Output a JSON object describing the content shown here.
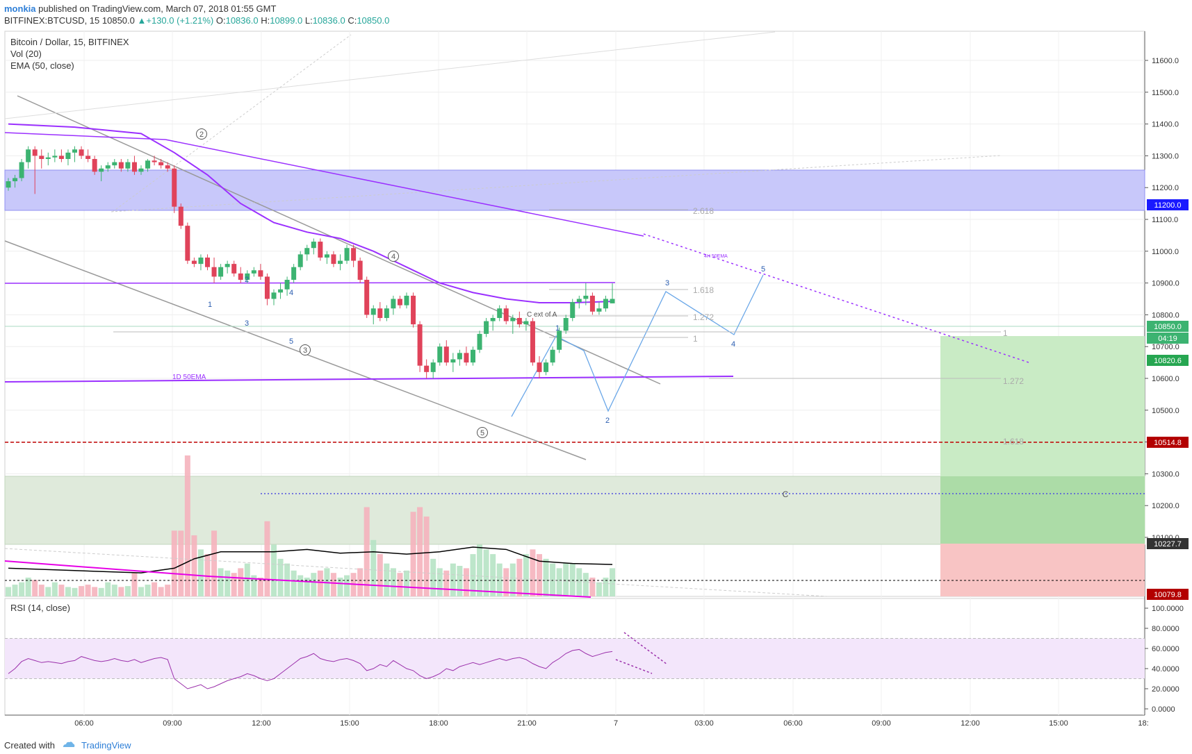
{
  "header": {
    "author": "monkia",
    "published": "published on TradingView.com, March 07, 2018 01:55 GMT",
    "symbol": "BITFINEX:BTCUSD, 15",
    "last": "10850.0",
    "change": "+130.0 (+1.21%)",
    "o": "10836.0",
    "h": "10899.0",
    "l": "10836.0",
    "c": "10850.0"
  },
  "legend": {
    "title": "Bitcoin / Dollar, 15, BITFINEX",
    "vol": "Vol (20)",
    "ema": "EMA (50, close)",
    "rsi": "RSI (14, close)"
  },
  "footer": {
    "created": "Created with",
    "brand": "TradingView"
  },
  "colors": {
    "up": "#26a69a",
    "upBody": "#3cb371",
    "down": "#e0435a",
    "ema": "#9b30ff",
    "zone": "#9f9ff7",
    "target": "#a8dca0",
    "stop": "#f8b4b4",
    "redLine": "#c00000"
  },
  "chart_data": {
    "type": "candlestick",
    "price_axis": {
      "min": 10079.8,
      "max": 11650,
      "ticks": [
        10100,
        10200,
        10300,
        10400,
        10500,
        10600,
        10700,
        10800,
        10900,
        11000,
        11100,
        11200,
        11300,
        11400,
        11500,
        11600
      ],
      "tick_labels": [
        "10100.0",
        "10200.0",
        "10300.0",
        "10400.0",
        "10500.0",
        "10600.0",
        "10700.0",
        "10800.0",
        "10900.0",
        "11000.0",
        "11100.0",
        "11200.0",
        "11300.0",
        "11400.0",
        "11500.0",
        "11600.0"
      ]
    },
    "time_axis": {
      "labels": [
        "06:00",
        "09:00",
        "12:00",
        "15:00",
        "18:00",
        "21:00",
        "7",
        "03:00",
        "06:00",
        "09:00",
        "12:00",
        "15:00",
        "18:"
      ]
    },
    "price_tags": [
      {
        "value": 11200.0,
        "label": "11200.0",
        "color": "#1a1aff"
      },
      {
        "value": 10850.0,
        "label": "10850.0",
        "color": "#3cb371"
      },
      {
        "value": 10850.0,
        "label": "04:19",
        "color": "#3cb371"
      },
      {
        "value": 10820.6,
        "label": "10820.6",
        "color": "#26a651"
      },
      {
        "value": 10514.8,
        "label": "10514.8",
        "color": "#b30000"
      },
      {
        "value": 10227.7,
        "label": "10227.7",
        "color": "#333333"
      },
      {
        "value": 10079.8,
        "label": "10079.8",
        "color": "#b30000"
      }
    ],
    "candles": [
      [
        11200,
        11230,
        11190,
        11220
      ],
      [
        11220,
        11240,
        11200,
        11230
      ],
      [
        11230,
        11290,
        11220,
        11280
      ],
      [
        11280,
        11330,
        11260,
        11320
      ],
      [
        11320,
        11330,
        11180,
        11300
      ],
      [
        11300,
        11320,
        11260,
        11290
      ],
      [
        11290,
        11310,
        11270,
        11295
      ],
      [
        11295,
        11320,
        11280,
        11300
      ],
      [
        11300,
        11320,
        11280,
        11290
      ],
      [
        11290,
        11320,
        11270,
        11310
      ],
      [
        11310,
        11330,
        11280,
        11320
      ],
      [
        11320,
        11330,
        11290,
        11300
      ],
      [
        11300,
        11320,
        11280,
        11290
      ],
      [
        11290,
        11300,
        11240,
        11250
      ],
      [
        11250,
        11270,
        11220,
        11260
      ],
      [
        11260,
        11280,
        11250,
        11270
      ],
      [
        11270,
        11290,
        11260,
        11280
      ],
      [
        11280,
        11290,
        11250,
        11260
      ],
      [
        11260,
        11290,
        11250,
        11280
      ],
      [
        11280,
        11300,
        11240,
        11250
      ],
      [
        11250,
        11270,
        11240,
        11260
      ],
      [
        11260,
        11290,
        11250,
        11285
      ],
      [
        11285,
        11300,
        11270,
        11280
      ],
      [
        11280,
        11290,
        11260,
        11270
      ],
      [
        11270,
        11280,
        11250,
        11260
      ],
      [
        11260,
        11270,
        11120,
        11140
      ],
      [
        11140,
        11150,
        11070,
        11080
      ],
      [
        11080,
        11090,
        10960,
        10970
      ],
      [
        10970,
        10980,
        10950,
        10960
      ],
      [
        10960,
        10990,
        10940,
        10980
      ],
      [
        10980,
        10990,
        10940,
        10950
      ],
      [
        10950,
        10980,
        10900,
        10920
      ],
      [
        10920,
        10960,
        10910,
        10950
      ],
      [
        10950,
        10970,
        10930,
        10960
      ],
      [
        10960,
        10970,
        10920,
        10930
      ],
      [
        10930,
        10950,
        10900,
        10910
      ],
      [
        10910,
        10940,
        10900,
        10930
      ],
      [
        10930,
        10950,
        10920,
        10940
      ],
      [
        10940,
        10960,
        10910,
        10920
      ],
      [
        10920,
        10930,
        10830,
        10850
      ],
      [
        10850,
        10880,
        10830,
        10870
      ],
      [
        10870,
        10900,
        10850,
        10880
      ],
      [
        10880,
        10920,
        10860,
        10910
      ],
      [
        10910,
        10960,
        10900,
        10950
      ],
      [
        10950,
        11000,
        10940,
        10990
      ],
      [
        10990,
        11020,
        10970,
        11010
      ],
      [
        11010,
        11040,
        10990,
        11030
      ],
      [
        11030,
        11040,
        10970,
        10980
      ],
      [
        10980,
        11000,
        10960,
        10990
      ],
      [
        10990,
        11000,
        10950,
        10960
      ],
      [
        10960,
        10990,
        10940,
        10970
      ],
      [
        10970,
        11020,
        10960,
        11010
      ],
      [
        11010,
        11020,
        10950,
        10970
      ],
      [
        10970,
        10980,
        10900,
        10910
      ],
      [
        10910,
        10920,
        10790,
        10800
      ],
      [
        10800,
        10830,
        10770,
        10820
      ],
      [
        10820,
        10840,
        10780,
        10790
      ],
      [
        10790,
        10830,
        10780,
        10820
      ],
      [
        10820,
        10860,
        10800,
        10850
      ],
      [
        10850,
        10860,
        10820,
        10830
      ],
      [
        10830,
        10870,
        10820,
        10860
      ],
      [
        10860,
        10870,
        10760,
        10770
      ],
      [
        10770,
        10780,
        10620,
        10640
      ],
      [
        10640,
        10660,
        10600,
        10620
      ],
      [
        10620,
        10660,
        10600,
        10650
      ],
      [
        10650,
        10710,
        10640,
        10700
      ],
      [
        10700,
        10720,
        10640,
        10650
      ],
      [
        10650,
        10680,
        10620,
        10660
      ],
      [
        10660,
        10690,
        10640,
        10680
      ],
      [
        10680,
        10700,
        10640,
        10650
      ],
      [
        10650,
        10700,
        10640,
        10690
      ],
      [
        10690,
        10750,
        10680,
        10740
      ],
      [
        10740,
        10790,
        10730,
        10780
      ],
      [
        10780,
        10800,
        10750,
        10790
      ],
      [
        10790,
        10830,
        10780,
        10820
      ],
      [
        10820,
        10830,
        10770,
        10780
      ],
      [
        10780,
        10800,
        10740,
        10790
      ],
      [
        10790,
        10810,
        10760,
        10770
      ],
      [
        10770,
        10790,
        10750,
        10780
      ],
      [
        10780,
        10790,
        10640,
        10650
      ],
      [
        10650,
        10670,
        10600,
        10620
      ],
      [
        10620,
        10660,
        10610,
        10650
      ],
      [
        10650,
        10700,
        10640,
        10690
      ],
      [
        10690,
        10760,
        10680,
        10750
      ],
      [
        10750,
        10800,
        10740,
        10790
      ],
      [
        10790,
        10850,
        10780,
        10840
      ],
      [
        10840,
        10860,
        10820,
        10850
      ],
      [
        10850,
        10900,
        10830,
        10860
      ],
      [
        10860,
        10870,
        10800,
        10810
      ],
      [
        10810,
        10840,
        10800,
        10820
      ],
      [
        10820,
        10860,
        10810,
        10850
      ],
      [
        10836,
        10899,
        10836,
        10850
      ]
    ],
    "ema_50": [
      [
        0,
        11400
      ],
      [
        10,
        11390
      ],
      [
        20,
        11370
      ],
      [
        25,
        11310
      ],
      [
        30,
        11240
      ],
      [
        35,
        11150
      ],
      [
        40,
        11090
      ],
      [
        45,
        11060
      ],
      [
        50,
        11040
      ],
      [
        55,
        11000
      ],
      [
        60,
        10950
      ],
      [
        65,
        10900
      ],
      [
        70,
        10870
      ],
      [
        75,
        10850
      ],
      [
        80,
        10838
      ],
      [
        85,
        10838
      ],
      [
        91,
        10842
      ]
    ],
    "volume": [
      20,
      25,
      30,
      40,
      35,
      25,
      20,
      30,
      25,
      20,
      18,
      22,
      25,
      20,
      18,
      30,
      25,
      20,
      22,
      50,
      20,
      25,
      30,
      20,
      25,
      140,
      140,
      300,
      130,
      100,
      90,
      140,
      60,
      55,
      50,
      60,
      70,
      45,
      40,
      160,
      110,
      80,
      70,
      55,
      45,
      40,
      50,
      55,
      60,
      50,
      40,
      45,
      50,
      60,
      190,
      120,
      90,
      70,
      60,
      50,
      55,
      180,
      190,
      170,
      80,
      60,
      55,
      70,
      65,
      60,
      90,
      110,
      100,
      90,
      70,
      60,
      70,
      80,
      90,
      100,
      90,
      80,
      70,
      60,
      70,
      70,
      60,
      50,
      40,
      30,
      40,
      60
    ],
    "volume_ma": [
      [
        0,
        60
      ],
      [
        10,
        55
      ],
      [
        20,
        50
      ],
      [
        25,
        60
      ],
      [
        28,
        80
      ],
      [
        32,
        95
      ],
      [
        40,
        95
      ],
      [
        45,
        100
      ],
      [
        50,
        92
      ],
      [
        55,
        95
      ],
      [
        60,
        90
      ],
      [
        65,
        95
      ],
      [
        70,
        105
      ],
      [
        75,
        100
      ],
      [
        80,
        75
      ],
      [
        85,
        70
      ],
      [
        91,
        68
      ]
    ],
    "rsi": {
      "ticks": [
        0,
        20,
        40,
        60,
        80,
        100
      ],
      "tick_labels": [
        "0.0000",
        "20.0000",
        "40.0000",
        "60.0000",
        "80.0000",
        "100.0000"
      ],
      "values": [
        35,
        40,
        47,
        50,
        48,
        46,
        47,
        46,
        45,
        47,
        48,
        52,
        50,
        48,
        47,
        48,
        50,
        48,
        47,
        49,
        46,
        48,
        50,
        51,
        49,
        30,
        25,
        20,
        22,
        24,
        20,
        22,
        25,
        28,
        30,
        32,
        35,
        33,
        30,
        28,
        30,
        35,
        40,
        45,
        50,
        52,
        55,
        50,
        48,
        47,
        49,
        50,
        48,
        45,
        38,
        40,
        44,
        42,
        48,
        44,
        40,
        38,
        33,
        30,
        32,
        35,
        40,
        38,
        42,
        44,
        46,
        44,
        46,
        48,
        50,
        48,
        50,
        51,
        49,
        45,
        42,
        40,
        46,
        50,
        55,
        58,
        59,
        55,
        52,
        54,
        56,
        57
      ]
    },
    "annotations": {
      "fib_levels": [
        "2.618",
        "1.618",
        "1.272",
        "1",
        "1",
        "1.272",
        "1.618"
      ],
      "wave_labels": [
        "1",
        "2",
        "3",
        "4",
        "5",
        "1",
        "2",
        "3",
        "4",
        "5"
      ],
      "circled_labels": [
        "2",
        "3",
        "4",
        "5"
      ],
      "ema_1d_label": "1D 50EMA",
      "ema_4h_label": "4H 50EMA",
      "c_ext_label": "C ext of A",
      "c_label": "C"
    }
  }
}
